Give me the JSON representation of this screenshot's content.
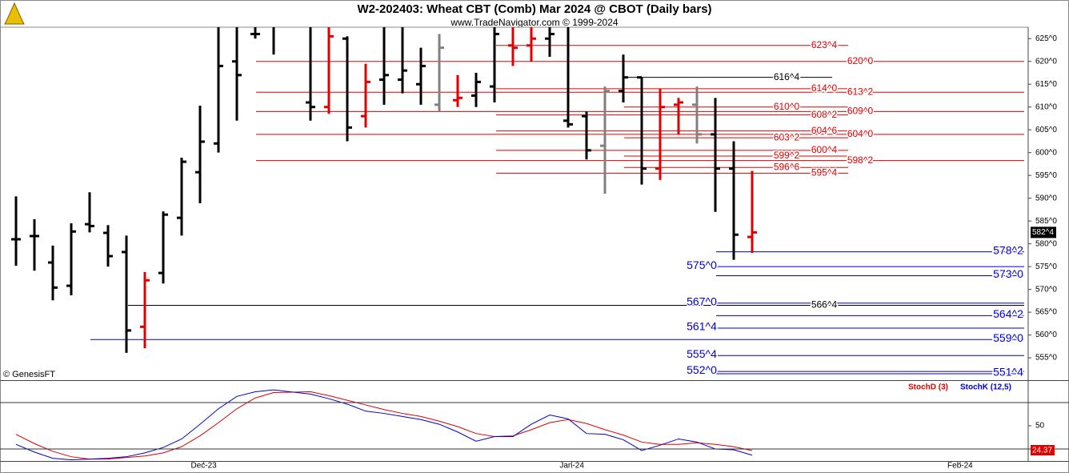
{
  "chart_data": [
    {
      "type": "ohlc",
      "title": "W2-202403:  Wheat CBT (Comb) Mar 2024 @ CBOT  (Daily bars)",
      "subtitle": "www.TradeNavigator.com © 1999-2024",
      "copyright": "© GenesisFT",
      "last_label": "582^4",
      "xlim": [
        -0.87,
        55
      ],
      "ylim": [
        550.1,
        627.5
      ],
      "yticks": [
        {
          "value": 555,
          "label": "555^0"
        },
        {
          "value": 560,
          "label": "560^0"
        },
        {
          "value": 565,
          "label": "565^0"
        },
        {
          "value": 570,
          "label": "570^0"
        },
        {
          "value": 575,
          "label": "575^0"
        },
        {
          "value": 580,
          "label": "580^0"
        },
        {
          "value": 585,
          "label": "585^0"
        },
        {
          "value": 590,
          "label": "590^0"
        },
        {
          "value": 595,
          "label": "595^0"
        },
        {
          "value": 600,
          "label": "600^0"
        },
        {
          "value": 605,
          "label": "605^0"
        },
        {
          "value": 610,
          "label": "610^0"
        },
        {
          "value": 615,
          "label": "615^0"
        },
        {
          "value": 620,
          "label": "620^0"
        },
        {
          "value": 625,
          "label": "625^0"
        }
      ],
      "x": [
        0,
        1,
        2,
        3,
        4,
        5,
        6,
        7,
        8,
        9,
        10,
        11,
        12,
        13,
        14,
        16,
        17,
        18,
        19,
        20,
        21,
        22,
        23,
        24,
        25,
        26,
        27,
        28,
        29,
        30,
        31,
        32,
        33,
        34,
        35,
        36,
        37,
        38,
        39,
        40
      ],
      "open": [
        581,
        581.7,
        575.9,
        570.8,
        584.3,
        582.4,
        578.2,
        561.8,
        573.6,
        585.7,
        595.7,
        602,
        620,
        626,
        628,
        611,
        610,
        625,
        608,
        616,
        616,
        615,
        610.5,
        611.5,
        612.5,
        614.5,
        623.5,
        623.5,
        625,
        607,
        608,
        601.5,
        613.5,
        616.5,
        596.5,
        610.5,
        610.5,
        604,
        596.5,
        581.5
      ],
      "high": [
        590.4,
        585.4,
        579.6,
        584.5,
        591.3,
        584.1,
        581.8,
        573.8,
        587.1,
        598.9,
        610.3,
        628,
        628,
        628,
        628,
        628,
        628,
        625.5,
        619.5,
        628,
        628,
        623,
        626,
        617,
        617.5,
        628,
        628,
        628,
        628,
        628,
        609,
        614.5,
        621.5,
        616.5,
        614,
        612,
        614.5,
        612,
        602.5,
        596
      ],
      "low": [
        575.2,
        574.1,
        567.6,
        568.7,
        582.5,
        575,
        556.1,
        557.1,
        571.3,
        581.8,
        588.9,
        600,
        607,
        625,
        621.5,
        607,
        608.5,
        602.5,
        605.5,
        610.5,
        613,
        610.5,
        609,
        610,
        610,
        611,
        619,
        620,
        621,
        605.5,
        598.5,
        591,
        611,
        593,
        594,
        604,
        602,
        587,
        576.5,
        578
      ],
      "close": [
        581,
        581.7,
        570.4,
        582.7,
        583.9,
        577.3,
        561,
        572,
        586.4,
        598,
        602.4,
        619,
        617,
        626,
        628,
        610,
        625.5,
        605.5,
        615.5,
        617,
        618,
        619,
        623,
        612,
        615.5,
        626,
        623,
        625,
        626,
        606.2,
        600.5,
        613.5,
        616.5,
        596.5,
        610,
        611,
        604,
        596.5,
        582,
        582.5
      ],
      "colors": [
        "#000",
        "#000",
        "#000",
        "#000",
        "#000",
        "#000",
        "#000",
        "#e00000",
        "#000",
        "#000",
        "#000",
        "#000",
        "#000",
        "#000",
        "#000",
        "#000",
        "#e00000",
        "#000",
        "#e00000",
        "#000",
        "#000",
        "#000",
        "#808080",
        "#e00000",
        "#000",
        "#000",
        "#e00000",
        "#e00000",
        "#000",
        "#000",
        "#000",
        "#808080",
        "#000",
        "#000",
        "#e00000",
        "#e00000",
        "#808080",
        "#000",
        "#000",
        "#e00000"
      ],
      "levels": [
        {
          "value": 623.5,
          "label": "623^4",
          "color": "#e00000"
        },
        {
          "value": 620,
          "label": "620^0",
          "color": "#e00000"
        },
        {
          "value": 616.5,
          "label": "616^4",
          "color": "#000000"
        },
        {
          "value": 614,
          "label": "614^0",
          "color": "#e00000"
        },
        {
          "value": 613.25,
          "label": "613^2",
          "color": "#e00000"
        },
        {
          "value": 610,
          "label": "610^0",
          "color": "#e00000"
        },
        {
          "value": 609,
          "label": "609^0",
          "color": "#e00000"
        },
        {
          "value": 608.25,
          "label": "608^2",
          "color": "#e00000"
        },
        {
          "value": 604.75,
          "label": "604^6",
          "color": "#e00000"
        },
        {
          "value": 604,
          "label": "604^0",
          "color": "#e00000"
        },
        {
          "value": 603.25,
          "label": "603^2",
          "color": "#e00000"
        },
        {
          "value": 600.5,
          "label": "600^4",
          "color": "#e00000"
        },
        {
          "value": 599.25,
          "label": "599^2",
          "color": "#e00000"
        },
        {
          "value": 598.25,
          "label": "598^2",
          "color": "#e00000"
        },
        {
          "value": 596.75,
          "label": "596^6",
          "color": "#e00000"
        },
        {
          "value": 595.5,
          "label": "595^4",
          "color": "#e00000"
        },
        {
          "value": 578.25,
          "label": "578^2",
          "color": "#0000cc"
        },
        {
          "value": 575,
          "label": "575^0",
          "color": "#0000cc"
        },
        {
          "value": 573,
          "label": "573^0",
          "color": "#0000cc"
        },
        {
          "value": 567,
          "label": "567^0",
          "color": "#0000cc"
        },
        {
          "value": 566.5,
          "label": "566^4",
          "color": "#000000"
        },
        {
          "value": 564.25,
          "label": "564^2",
          "color": "#0000cc"
        },
        {
          "value": 561.5,
          "label": "561^4",
          "color": "#0000cc"
        },
        {
          "value": 559,
          "label": "559^0",
          "color": "#0000cc"
        },
        {
          "value": 555.5,
          "label": "555^4",
          "color": "#0000cc"
        },
        {
          "value": 552,
          "label": "552^0",
          "color": "#0000cc"
        },
        {
          "value": 551.5,
          "label": "551^4",
          "color": "#0000cc"
        }
      ]
    },
    {
      "type": "line",
      "last_label": "24.37",
      "xlim": [
        -0.87,
        55
      ],
      "ylim": [
        4.5,
        109
      ],
      "yticks": [
        50
      ],
      "hlines": [
        80,
        20
      ],
      "xticks": [
        {
          "value": 10.2,
          "label": "Dec-23"
        },
        {
          "value": 30.2,
          "label": "Jan-24"
        },
        {
          "value": 51.3,
          "label": "Feb-24"
        }
      ],
      "x": [
        0,
        1,
        2,
        3,
        4,
        5,
        6,
        7,
        8,
        9,
        10,
        11,
        12,
        13,
        14,
        16,
        17,
        18,
        19,
        20,
        21,
        22,
        23,
        24,
        25,
        26,
        27,
        28,
        29,
        30,
        31,
        32,
        33,
        34,
        35,
        36,
        37,
        38,
        39,
        40
      ],
      "series": [
        {
          "name": "StochD (3)",
          "color": "#e00000",
          "values": [
            39,
            27,
            17,
            10,
            7,
            7,
            9,
            11,
            15,
            23,
            37,
            54,
            72,
            86,
            93,
            94,
            89,
            83,
            77,
            71,
            66,
            62,
            56,
            49,
            40,
            36,
            37,
            45,
            54,
            58,
            53,
            45,
            38,
            29,
            26,
            26,
            28,
            26,
            23,
            18
          ]
        },
        {
          "name": "StochK (12,5)",
          "color": "#0000cc",
          "values": [
            26,
            16,
            8,
            6,
            7,
            8,
            10,
            15,
            22,
            33,
            52,
            72,
            88,
            94,
            96.5,
            91,
            85,
            78,
            69,
            66,
            62,
            58,
            52,
            42,
            30,
            36,
            36,
            52,
            64,
            59,
            40,
            39,
            32,
            18,
            25,
            33,
            29,
            20,
            19,
            12
          ]
        }
      ]
    }
  ]
}
